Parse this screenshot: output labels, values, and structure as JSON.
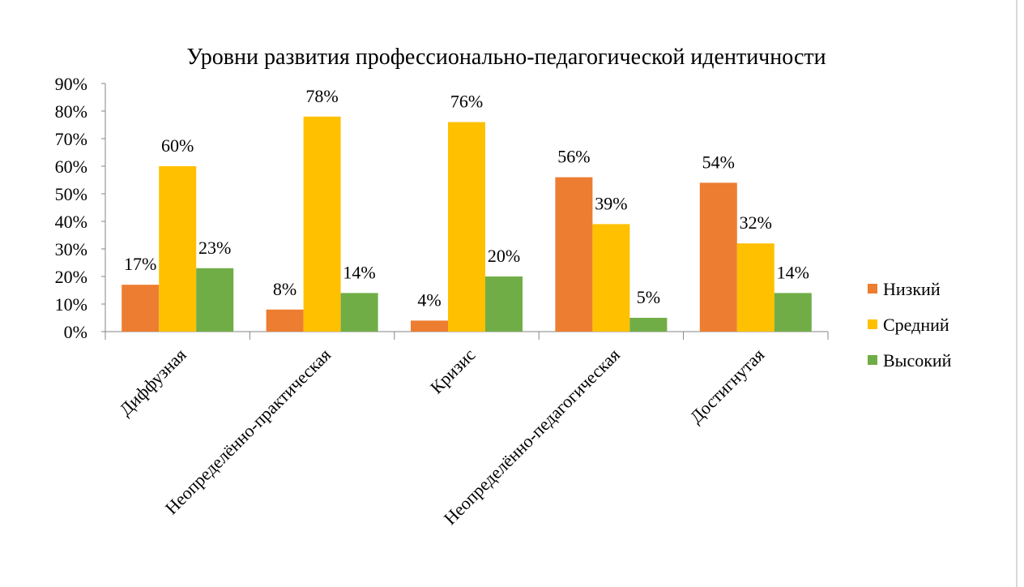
{
  "chart_data": {
    "type": "bar",
    "title": "Уровни развития профессионально-педагогической идентичности",
    "categories": [
      "Диффузная",
      "Неопределённо-практическая",
      "Кризис",
      "Неопределённо-педагогическая",
      "Достигнутая"
    ],
    "series": [
      {
        "name": "Низкий",
        "color": "#ED7D31",
        "values": [
          17,
          8,
          4,
          56,
          54
        ]
      },
      {
        "name": "Средний",
        "color": "#FFC000",
        "values": [
          60,
          78,
          76,
          39,
          32
        ]
      },
      {
        "name": "Высокий",
        "color": "#70AD47",
        "values": [
          23,
          14,
          20,
          5,
          14
        ]
      }
    ],
    "y_ticks": [
      "0%",
      "10%",
      "20%",
      "30%",
      "40%",
      "50%",
      "60%",
      "70%",
      "80%",
      "90%"
    ],
    "ylim": [
      0,
      90
    ],
    "value_suffix": "%",
    "xlabel": "",
    "ylabel": "",
    "grid": false,
    "legend_position": "right"
  }
}
